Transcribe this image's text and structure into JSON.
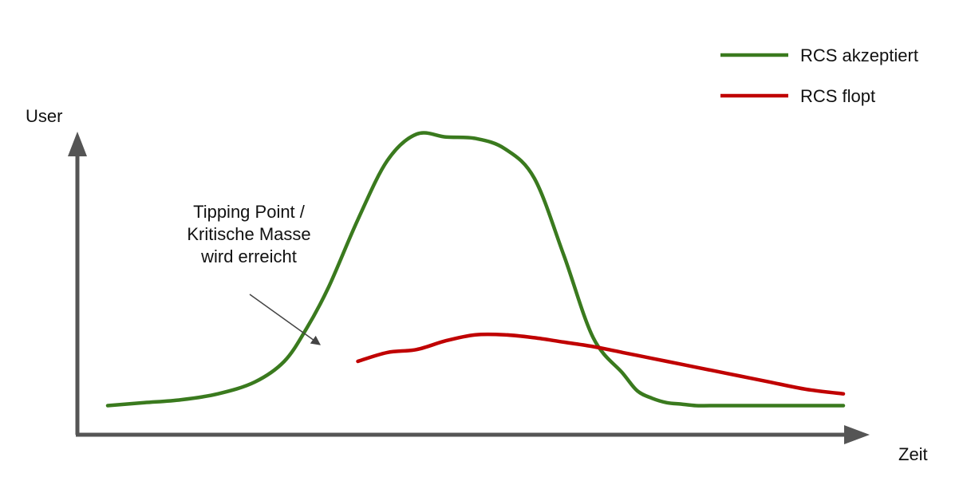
{
  "chart_data": {
    "type": "line",
    "xlabel": "Zeit",
    "ylabel": "User",
    "grid": false,
    "legend_position": "top-right",
    "annotation": {
      "lines": [
        "Tipping Point /",
        "Kritische Masse",
        "wird erreicht"
      ]
    },
    "series": [
      {
        "name": "RCS akzeptiert",
        "color": "#3a7a1e",
        "x": [
          0,
          5,
          10,
          15,
          20,
          24,
          27,
          30,
          34,
          38,
          42,
          46,
          50,
          54,
          58,
          62,
          66,
          70,
          72,
          74,
          76,
          78,
          80,
          82,
          86,
          90,
          95,
          100
        ],
        "y": [
          5,
          6,
          7,
          9,
          13,
          20,
          31,
          45,
          68,
          88,
          97,
          96,
          95.5,
          92,
          82,
          56,
          28,
          16,
          10,
          7.5,
          6,
          5.5,
          5,
          5,
          5,
          5,
          5,
          5
        ]
      },
      {
        "name": "RCS flopt",
        "color": "#c00000",
        "x": [
          34,
          38,
          42,
          46,
          50,
          54,
          58,
          62,
          66,
          70,
          74,
          78,
          82,
          86,
          90,
          95,
          100
        ],
        "y": [
          20,
          23,
          24,
          27,
          29,
          29,
          28,
          26.5,
          25,
          23,
          21,
          19,
          17,
          15,
          13,
          10.5,
          9
        ]
      }
    ]
  }
}
